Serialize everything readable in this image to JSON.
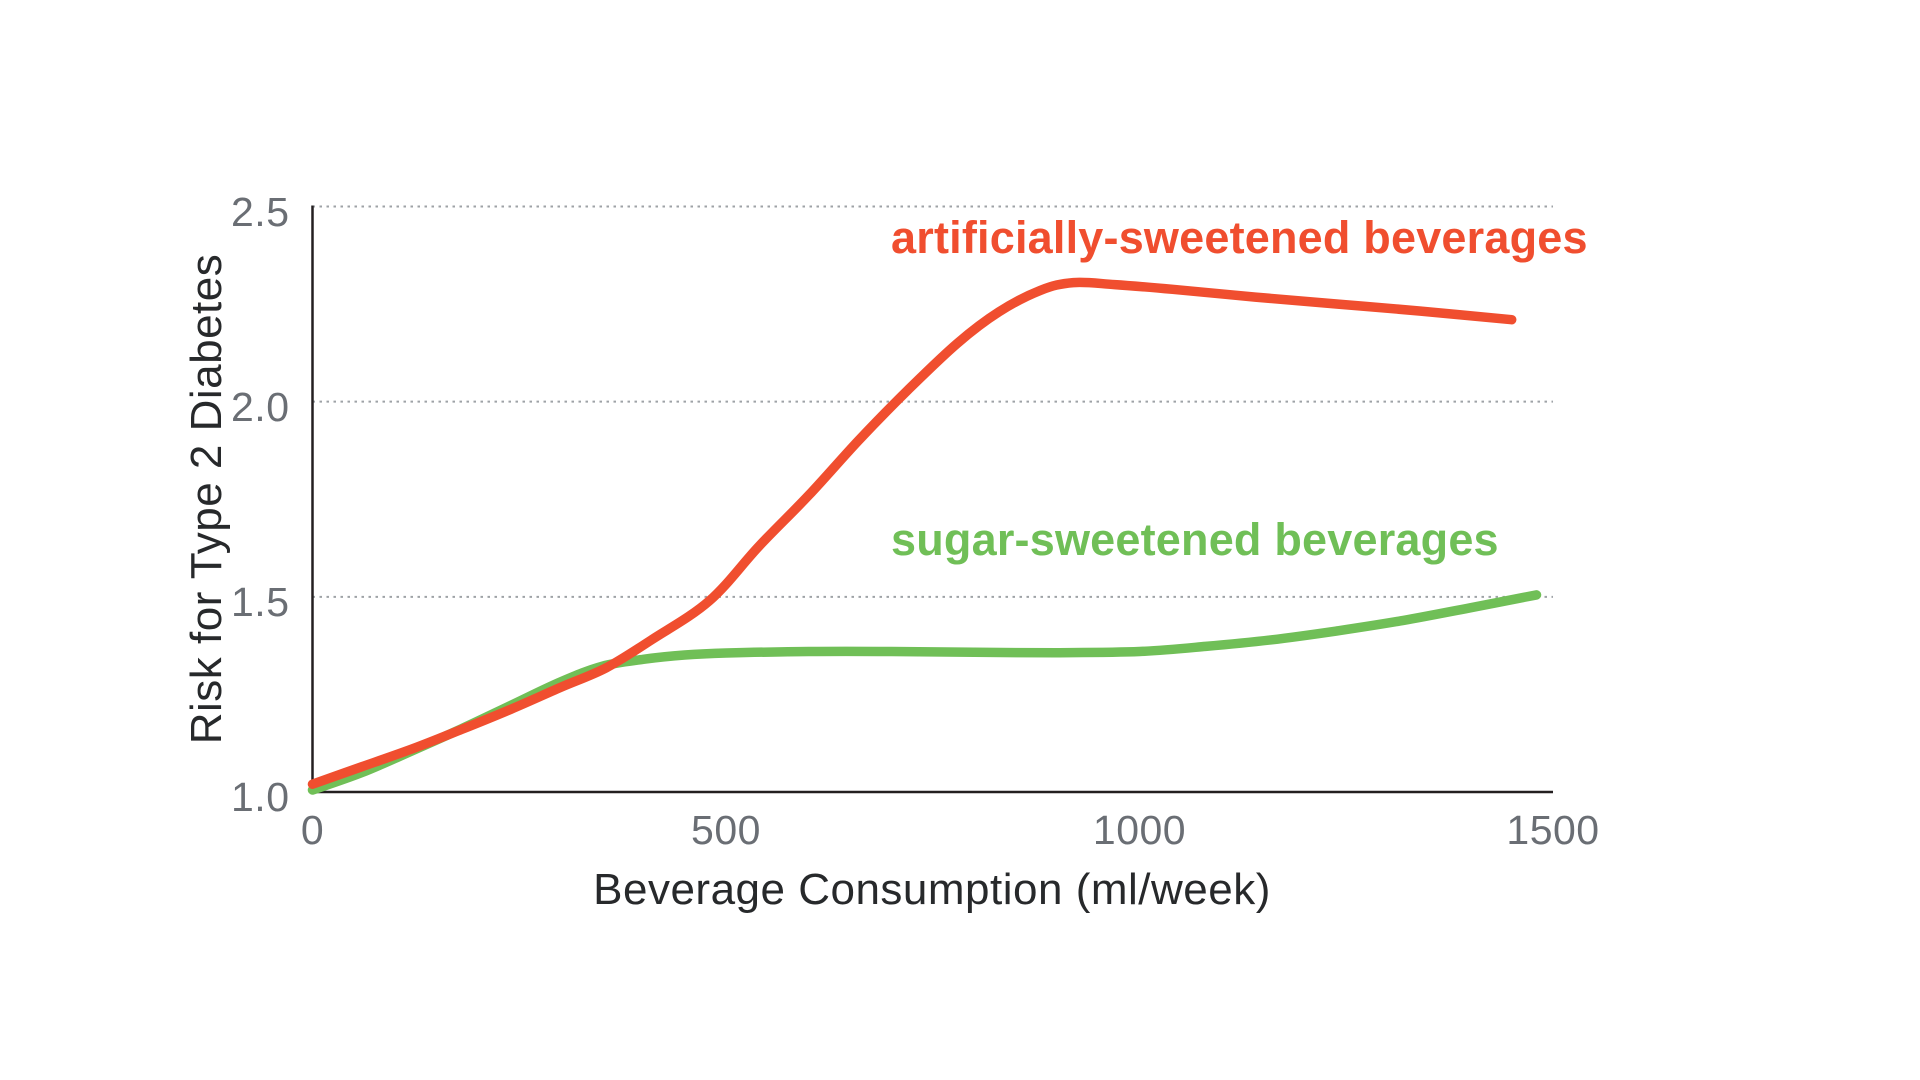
{
  "page": {
    "background": "#ffffff"
  },
  "chart_data": {
    "type": "line",
    "title": "",
    "xlabel": "Beverage Consumption (ml/week)",
    "ylabel": "Risk for Type 2 Diabetes",
    "xlim": [
      0,
      1500
    ],
    "ylim": [
      1.0,
      2.5
    ],
    "x_ticks": [
      {
        "value": 0,
        "label": "0"
      },
      {
        "value": 500,
        "label": "500"
      },
      {
        "value": 1000,
        "label": "1000"
      },
      {
        "value": 1500,
        "label": "1500"
      }
    ],
    "y_ticks": [
      {
        "value": 1.0,
        "label": "1.0"
      },
      {
        "value": 1.5,
        "label": "1.5"
      },
      {
        "value": 2.0,
        "label": "2.0"
      },
      {
        "value": 2.5,
        "label": "2.5"
      }
    ],
    "grid": {
      "horizontal_dotted_at": [
        1.5,
        2.0,
        2.5
      ],
      "color": "#9ea2a6",
      "style": "dotted"
    },
    "axis_color": "#231f20",
    "tick_label_color": "#6a6e74",
    "axis_title_color": "#27292b",
    "legend_position": "inline-labels-near-lines",
    "series": [
      {
        "name": "artificially-sweetened beverages",
        "color": "#f04e2f",
        "points": [
          [
            0,
            1.02
          ],
          [
            60,
            1.065
          ],
          [
            120,
            1.11
          ],
          [
            180,
            1.16
          ],
          [
            240,
            1.212
          ],
          [
            300,
            1.268
          ],
          [
            355,
            1.318
          ],
          [
            410,
            1.39
          ],
          [
            480,
            1.49
          ],
          [
            540,
            1.63
          ],
          [
            600,
            1.76
          ],
          [
            660,
            1.9
          ],
          [
            720,
            2.03
          ],
          [
            780,
            2.15
          ],
          [
            830,
            2.23
          ],
          [
            880,
            2.285
          ],
          [
            920,
            2.305
          ],
          [
            970,
            2.3
          ],
          [
            1040,
            2.288
          ],
          [
            1140,
            2.268
          ],
          [
            1240,
            2.25
          ],
          [
            1340,
            2.232
          ],
          [
            1450,
            2.21
          ]
        ]
      },
      {
        "name": "sugar-sweetened beverages",
        "color": "#70bf57",
        "points": [
          [
            0,
            1.005
          ],
          [
            60,
            1.05
          ],
          [
            120,
            1.105
          ],
          [
            180,
            1.162
          ],
          [
            240,
            1.222
          ],
          [
            300,
            1.282
          ],
          [
            350,
            1.322
          ],
          [
            400,
            1.34
          ],
          [
            450,
            1.351
          ],
          [
            500,
            1.356
          ],
          [
            600,
            1.36
          ],
          [
            700,
            1.36
          ],
          [
            800,
            1.358
          ],
          [
            900,
            1.357
          ],
          [
            1000,
            1.36
          ],
          [
            1080,
            1.373
          ],
          [
            1160,
            1.39
          ],
          [
            1240,
            1.413
          ],
          [
            1320,
            1.44
          ],
          [
            1400,
            1.472
          ],
          [
            1480,
            1.505
          ]
        ]
      }
    ]
  }
}
